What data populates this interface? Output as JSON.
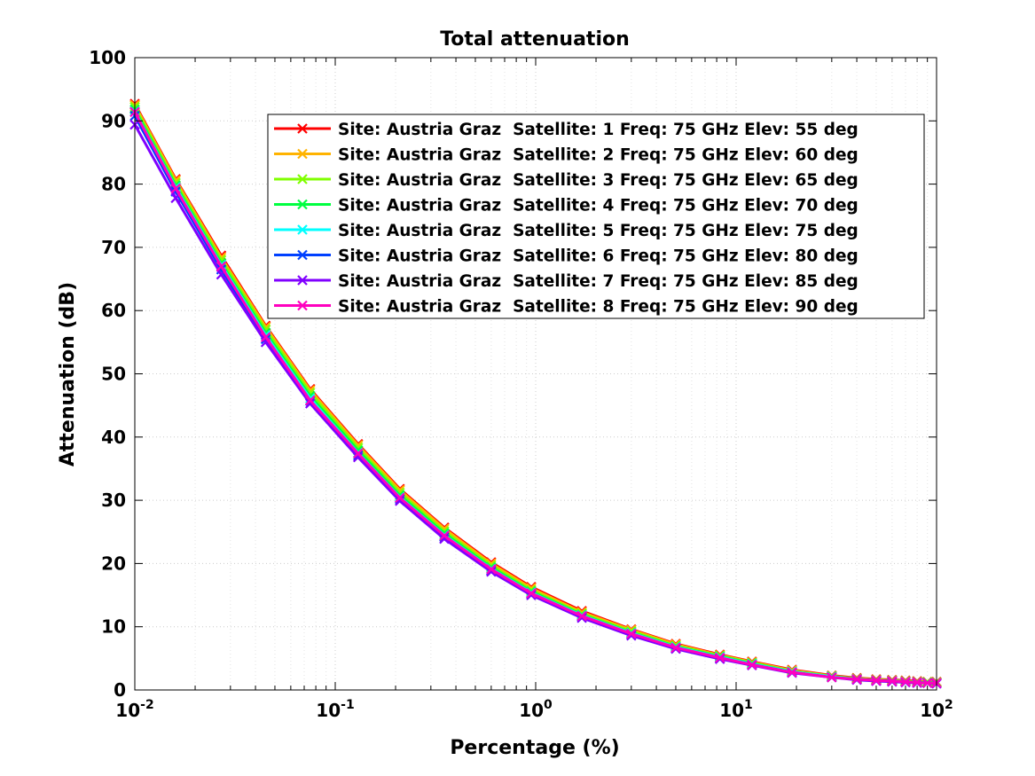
{
  "chart_data": {
    "type": "line",
    "title": "Total attenuation",
    "xlabel": "Percentage (%)",
    "ylabel": "Attenuation (dB)",
    "xscale": "log",
    "xlim": [
      0.01,
      100
    ],
    "ylim": [
      0,
      100
    ],
    "grid": "on",
    "legend_position": "top-right",
    "x_ticks": [
      {
        "base": "10",
        "exp": "-2"
      },
      {
        "base": "10",
        "exp": "-1"
      },
      {
        "base": "10",
        "exp": "0"
      },
      {
        "base": "10",
        "exp": "1"
      },
      {
        "base": "10",
        "exp": "2"
      }
    ],
    "y_ticks": [
      "0",
      "10",
      "20",
      "30",
      "40",
      "50",
      "60",
      "70",
      "80",
      "90",
      "100"
    ],
    "x": [
      0.01,
      0.016,
      0.027,
      0.045,
      0.075,
      0.13,
      0.21,
      0.35,
      0.6,
      0.95,
      1.7,
      3,
      5,
      8.3,
      12,
      19,
      30,
      40,
      50,
      60,
      70,
      80,
      90,
      100
    ],
    "series": [
      {
        "name": "Site: Austria Graz  Satellite: 1 Freq: 75 GHz Elev: 55 deg",
        "color": "#ff0000",
        "values": [
          92.7,
          80.8,
          68.7,
          57.6,
          47.6,
          38.9,
          31.8,
          25.7,
          20.2,
          16.3,
          12.5,
          9.6,
          7.3,
          5.6,
          4.5,
          3.2,
          2.3,
          1.9,
          1.7,
          1.6,
          1.5,
          1.4,
          1.3,
          1.3
        ]
      },
      {
        "name": "Site: Austria Graz  Satellite: 2 Freq: 75 GHz Elev: 60 deg",
        "color": "#ffb300",
        "values": [
          92.5,
          80.6,
          68.4,
          57.4,
          47.4,
          38.7,
          31.6,
          25.5,
          20.0,
          16.1,
          12.3,
          9.5,
          7.2,
          5.5,
          4.4,
          3.1,
          2.2,
          1.8,
          1.6,
          1.5,
          1.4,
          1.3,
          1.3,
          1.2
        ]
      },
      {
        "name": "Site: Austria Graz  Satellite: 3 Freq: 75 GHz Elev: 65 deg",
        "color": "#80ff00",
        "values": [
          92.2,
          80.2,
          68.0,
          57.0,
          47.0,
          38.3,
          31.2,
          25.1,
          19.7,
          15.8,
          12.1,
          9.3,
          7.0,
          5.4,
          4.3,
          3.0,
          2.2,
          1.8,
          1.6,
          1.5,
          1.4,
          1.3,
          1.2,
          1.2
        ]
      },
      {
        "name": "Site: Austria Graz  Satellite: 4 Freq: 75 GHz Elev: 70 deg",
        "color": "#00ff40",
        "values": [
          91.8,
          79.8,
          67.5,
          56.5,
          46.5,
          37.9,
          30.8,
          24.8,
          19.4,
          15.6,
          11.9,
          9.1,
          6.9,
          5.3,
          4.2,
          2.9,
          2.1,
          1.7,
          1.5,
          1.4,
          1.3,
          1.2,
          1.2,
          1.1
        ]
      },
      {
        "name": "Site: Austria Graz  Satellite: 5 Freq: 75 GHz Elev: 75 deg",
        "color": "#00ffff",
        "values": [
          91.5,
          79.5,
          67.2,
          56.1,
          46.1,
          37.5,
          30.5,
          24.5,
          19.2,
          15.4,
          11.8,
          9.0,
          6.8,
          5.2,
          4.1,
          2.9,
          2.1,
          1.7,
          1.5,
          1.4,
          1.3,
          1.2,
          1.1,
          1.1
        ]
      },
      {
        "name": "Site: Austria Graz  Satellite: 6 Freq: 75 GHz Elev: 80 deg",
        "color": "#0040ff",
        "values": [
          90.8,
          78.8,
          66.5,
          55.5,
          45.7,
          37.1,
          30.2,
          24.2,
          18.9,
          15.2,
          11.6,
          8.8,
          6.6,
          5.0,
          4.0,
          2.8,
          2.0,
          1.7,
          1.5,
          1.4,
          1.3,
          1.2,
          1.1,
          1.1
        ]
      },
      {
        "name": "Site: Austria Graz  Satellite: 7 Freq: 75 GHz Elev: 85 deg",
        "color": "#8000ff",
        "values": [
          89.4,
          77.8,
          65.7,
          55.0,
          45.3,
          36.8,
          29.9,
          23.9,
          18.7,
          15.0,
          11.4,
          8.6,
          6.5,
          4.9,
          3.9,
          2.7,
          2.0,
          1.6,
          1.4,
          1.3,
          1.2,
          1.1,
          1.1,
          1.0
        ]
      },
      {
        "name": "Site: Austria Graz  Satellite: 8 Freq: 75 GHz Elev: 90 deg",
        "color": "#ff00bf",
        "values": [
          91.4,
          79.3,
          67.0,
          55.8,
          45.8,
          37.4,
          30.4,
          24.4,
          19.1,
          15.3,
          11.7,
          8.9,
          6.7,
          5.1,
          4.0,
          2.8,
          2.0,
          1.7,
          1.5,
          1.4,
          1.3,
          1.2,
          1.1,
          1.1
        ]
      }
    ]
  }
}
